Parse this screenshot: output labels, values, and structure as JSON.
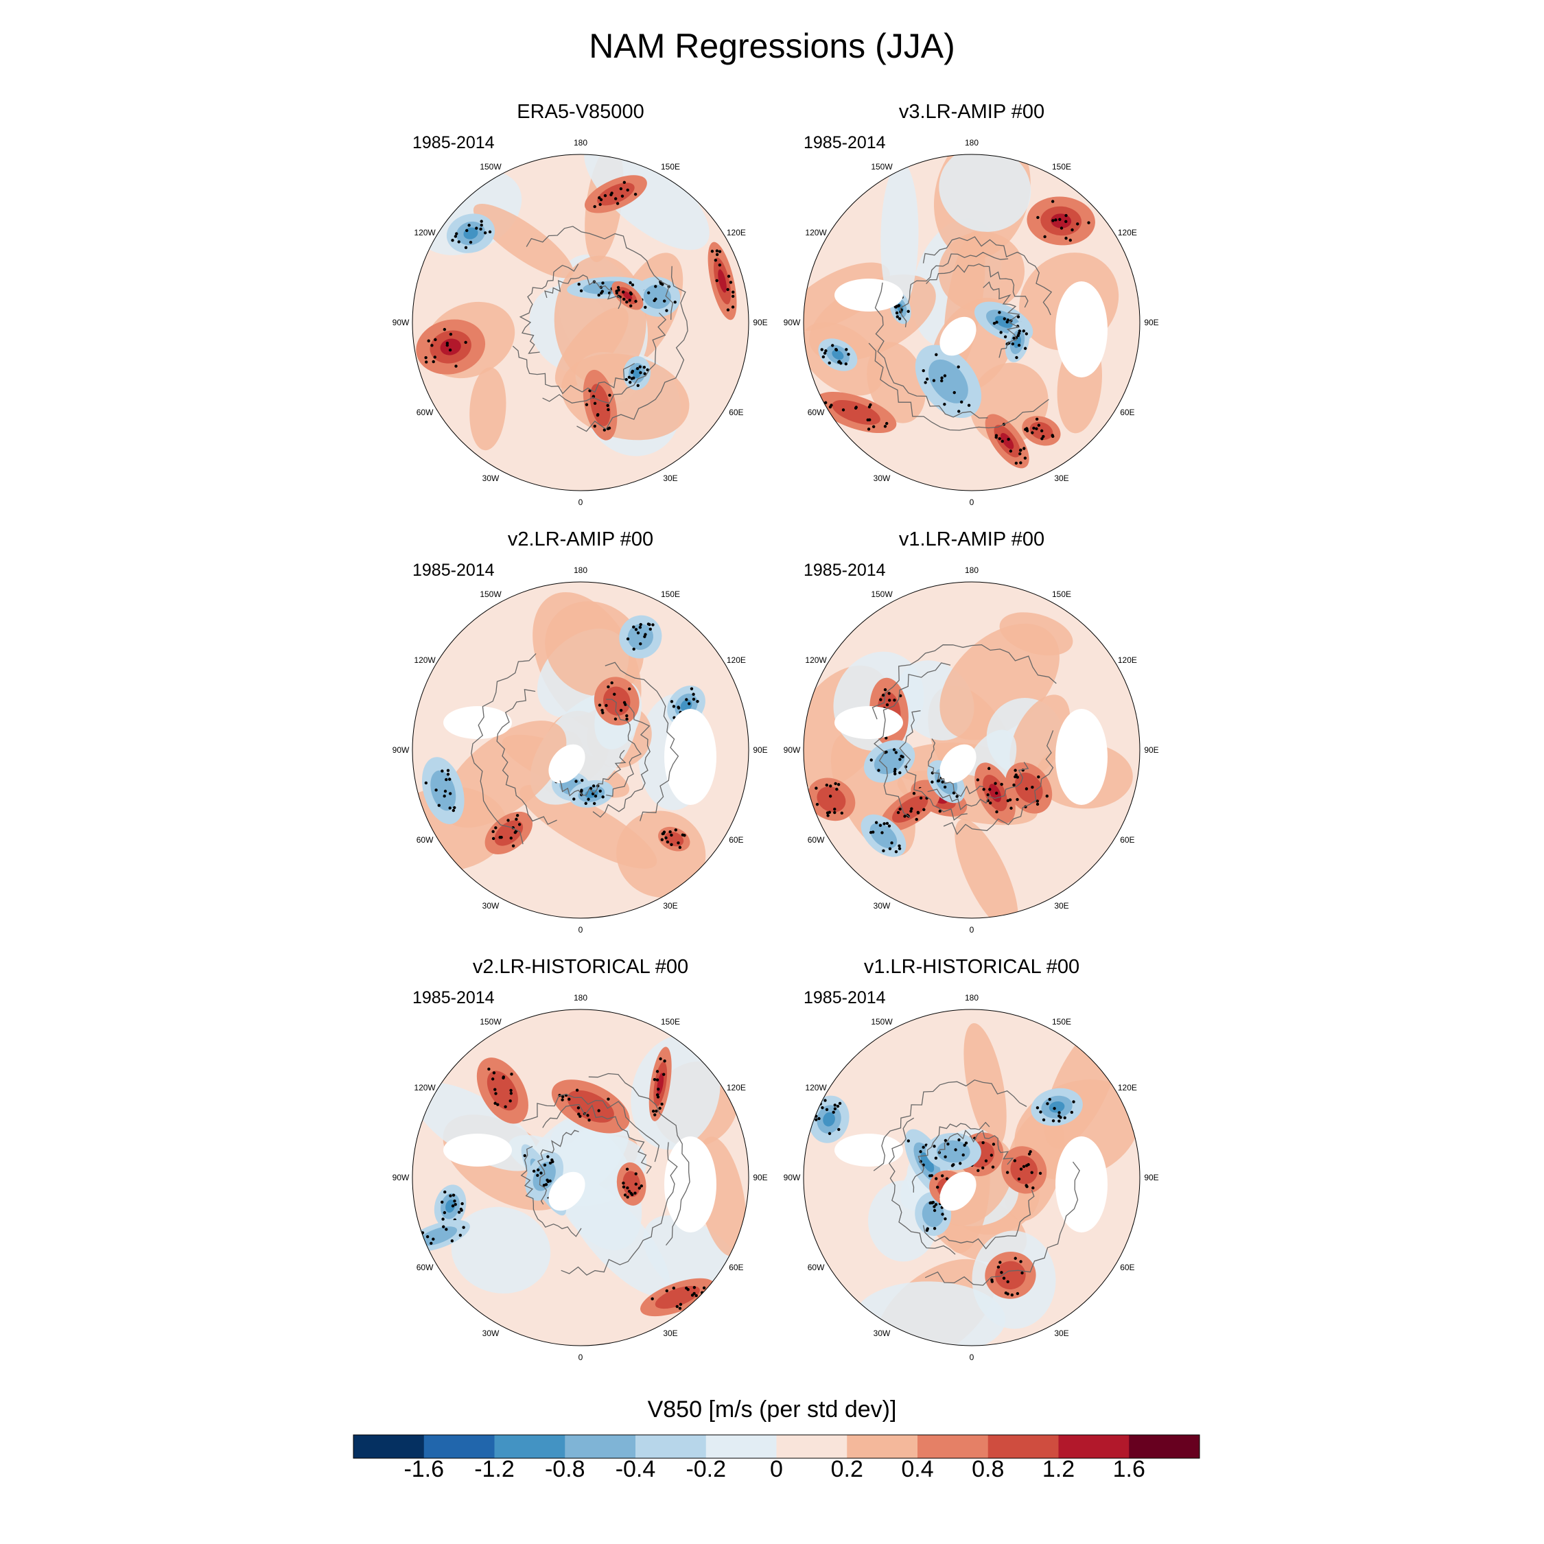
{
  "title": "NAM Regressions (JJA)",
  "panels": [
    {
      "name": "ERA5-V85000",
      "period": "1985-2014"
    },
    {
      "name": "v3.LR-AMIP  #00",
      "period": "1985-2014"
    },
    {
      "name": "v2.LR-AMIP  #00",
      "period": "1985-2014"
    },
    {
      "name": "v1.LR-AMIP  #00",
      "period": "1985-2014"
    },
    {
      "name": "v2.LR-HISTORICAL  #00",
      "period": "1985-2014"
    },
    {
      "name": "v1.LR-HISTORICAL  #00",
      "period": "1985-2014"
    }
  ],
  "longitude_labels": [
    "180",
    "150E",
    "120E",
    "90E",
    "60E",
    "30E",
    "0",
    "30W",
    "60W",
    "90W",
    "120W",
    "150W"
  ],
  "colorbar": {
    "label": "V850 [m/s (per std dev)]",
    "ticks": [
      "-1.6",
      "-1.2",
      "-0.8",
      "-0.4",
      "-0.2",
      "0",
      "0.2",
      "0.4",
      "0.8",
      "1.2",
      "1.6"
    ],
    "colors": [
      "#053061",
      "#2166ac",
      "#4393c3",
      "#7fb4d6",
      "#b7d6ea",
      "#e2edf4",
      "#f9e4da",
      "#f4b89b",
      "#e58066",
      "#cf4d3f",
      "#b2182b",
      "#67001f"
    ]
  },
  "chart_data": {
    "type": "heatmap",
    "title": "NAM Regressions (JJA)",
    "variable": "V850",
    "units": "m/s (per std dev)",
    "projection": "north polar stereographic",
    "period": "1985-2014",
    "season": "JJA",
    "contour_levels": [
      -1.6,
      -1.2,
      -0.8,
      -0.4,
      -0.2,
      0,
      0.2,
      0.4,
      0.8,
      1.2,
      1.6
    ],
    "panels": [
      "ERA5-V85000",
      "v3.LR-AMIP  #00",
      "v2.LR-AMIP  #00",
      "v1.LR-AMIP  #00",
      "v2.LR-HISTORICAL  #00",
      "v1.LR-HISTORICAL  #00"
    ],
    "stippling": "statistically significant regions"
  }
}
